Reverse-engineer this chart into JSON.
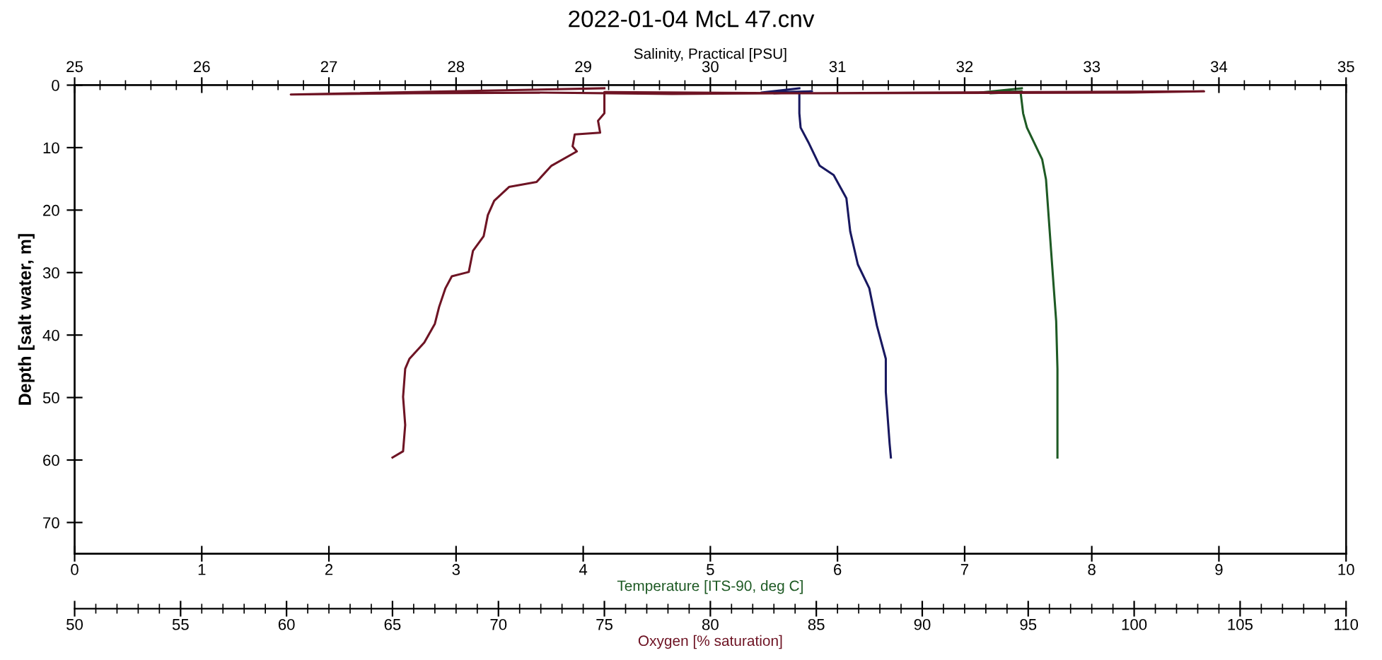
{
  "chart_data": [
    {
      "type": "line",
      "title": "2022-01-04 McL 47.cnv",
      "xlabel": "Temperature [ITS-90, deg C]",
      "x2label": "Salinity, Practical [PSU]",
      "ylabel": "Depth [salt water, m]",
      "xlim": [
        0,
        10
      ],
      "xticks": [
        0,
        1,
        2,
        3,
        4,
        5,
        6,
        7,
        8,
        9,
        10
      ],
      "x2lim": [
        25,
        35
      ],
      "x2ticks": [
        25,
        26,
        27,
        28,
        29,
        30,
        31,
        32,
        33,
        34,
        35
      ],
      "ylim": [
        75,
        0
      ],
      "yticks": [
        0,
        10,
        20,
        30,
        40,
        50,
        60,
        70
      ],
      "grid": false,
      "legend": false,
      "line_style": "solid",
      "marker": "none",
      "series": [
        {
          "axis": "x2",
          "color": "#181860",
          "x": [
            30.7,
            30.4,
            30.8,
            30.5,
            30.7,
            30.7,
            30.71,
            30.77,
            30.86,
            30.97,
            31.07,
            31.1,
            31.16,
            31.25,
            31.31,
            31.38,
            31.38,
            31.41,
            31.42
          ],
          "values": [
            0.5,
            1.2,
            1.0,
            1.3,
            1.1,
            4.5,
            6.8,
            9.1,
            12.9,
            14.4,
            18.1,
            23.4,
            28.7,
            32.5,
            38.5,
            43.8,
            49.1,
            57.4,
            59.6
          ]
        },
        {
          "color": "#1e5a24",
          "x": [
            7.45,
            7.12,
            7.45,
            7.2,
            7.44,
            7.46,
            7.49,
            7.61,
            7.64,
            7.68,
            7.72,
            7.73,
            7.73
          ],
          "values": [
            0.5,
            1.2,
            1.0,
            1.3,
            1.1,
            4.5,
            6.8,
            11.9,
            15.1,
            26.5,
            37.8,
            45.4,
            59.6
          ]
        }
      ]
    },
    {
      "type": "line",
      "xlabel": "Oxygen [% saturation]",
      "xlim": [
        50,
        110
      ],
      "xticks": [
        50,
        55,
        60,
        65,
        70,
        75,
        80,
        85,
        90,
        95,
        100,
        105,
        110
      ],
      "ylim": [
        75,
        0
      ],
      "tick_labels": "x",
      "line_style": "solid",
      "marker": "none",
      "series": [
        {
          "color": "#6e1424",
          "x": [
            75.0,
            60.2,
            66.0,
            72.0,
            78.2,
            90.0,
            103.3,
            99.8,
            85.0,
            75.0,
            75.0,
            74.7,
            74.8,
            73.6,
            73.5,
            73.7,
            72.5,
            71.8,
            70.5,
            69.8,
            69.5,
            69.3,
            68.8,
            68.6,
            67.8,
            67.5,
            67.2,
            67.0,
            66.5,
            65.8,
            65.6,
            65.5,
            65.6,
            65.5,
            65.0
          ],
          "values": [
            0.5,
            1.5,
            1.3,
            1.2,
            1.4,
            1.2,
            1.0,
            1.2,
            1.3,
            1.1,
            4.5,
            5.7,
            7.6,
            7.9,
            9.8,
            10.6,
            12.9,
            15.5,
            16.3,
            18.5,
            20.8,
            24.2,
            26.5,
            29.9,
            30.6,
            32.5,
            35.5,
            38.2,
            41.2,
            43.8,
            45.4,
            49.9,
            54.4,
            58.6,
            59.6
          ]
        }
      ]
    }
  ]
}
